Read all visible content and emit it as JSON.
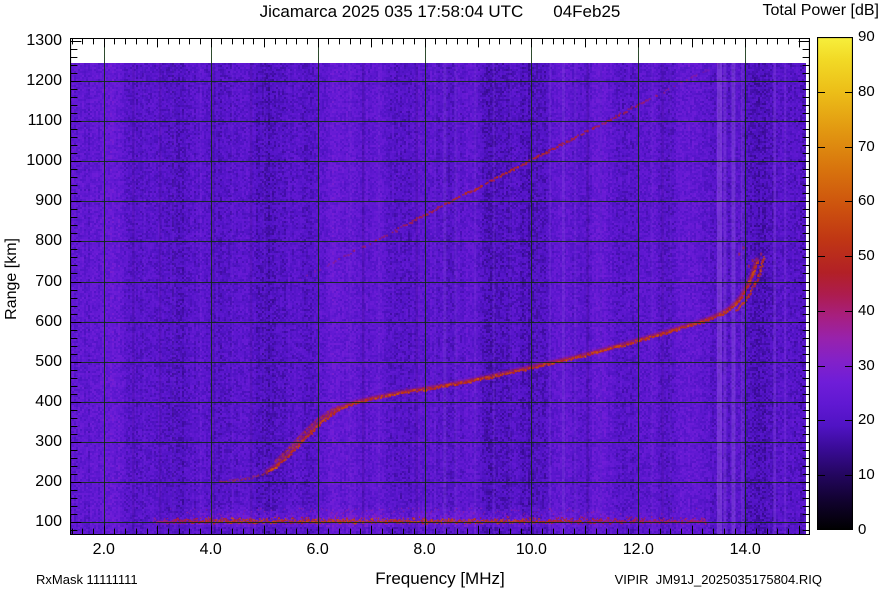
{
  "header": {
    "title_left": "Jicamarca 2025 035 17:58:04 UTC",
    "title_right": "04Feb25",
    "colorbar_title": "Total Power [dB]"
  },
  "axes": {
    "ylabel": "Range [km]",
    "xlabel": "Frequency [MHz]"
  },
  "footer": {
    "rx_mask": "RxMask 11111111",
    "file_label": "VIPIR  JM91J_2025035175804.RIQ"
  },
  "chart_data": {
    "type": "heatmap",
    "title": "Jicamarca 2025 035 17:58:04 UTC 04Feb25",
    "xlabel": "Frequency [MHz]",
    "ylabel": "Range [km]",
    "colorbar_label": "Total Power [dB]",
    "xlim": [
      1.37,
      15.21
    ],
    "ylim": [
      68,
      1307
    ],
    "clim": [
      0,
      90
    ],
    "grid": true,
    "xticks": [
      2,
      4,
      6,
      8,
      10,
      12,
      14
    ],
    "xtick_labels": [
      "2.0",
      "4.0",
      "6.0",
      "8.0",
      "10.0",
      "12.0",
      "14.0"
    ],
    "yticks": [
      100,
      200,
      300,
      400,
      500,
      600,
      700,
      800,
      900,
      1000,
      1100,
      1200,
      1300
    ],
    "ytick_labels": [
      "100",
      "200",
      "300",
      "400",
      "500",
      "600",
      "700",
      "800",
      "900",
      "1000",
      "1100",
      "1200",
      "1300"
    ],
    "cticks": [
      0,
      10,
      20,
      30,
      40,
      50,
      60,
      70,
      80,
      90
    ],
    "ctick_labels": [
      "0",
      "10",
      "20",
      "30",
      "40",
      "50",
      "60",
      "70",
      "80",
      "90"
    ],
    "background_power_db": 21,
    "data_top_km": 1245,
    "grid_color": "#0a2d0a",
    "colormap": [
      [
        0,
        "#000000"
      ],
      [
        5,
        "#10022c"
      ],
      [
        10,
        "#23065e"
      ],
      [
        15,
        "#3a0b98"
      ],
      [
        19,
        "#5013c4"
      ],
      [
        23,
        "#6018d2"
      ],
      [
        27,
        "#6f1dd8"
      ],
      [
        31,
        "#8321c8"
      ],
      [
        35,
        "#9822ac"
      ],
      [
        39,
        "#a71f80"
      ],
      [
        43,
        "#ad1c4e"
      ],
      [
        47,
        "#b22026"
      ],
      [
        53,
        "#c03614"
      ],
      [
        59,
        "#cd520e"
      ],
      [
        66,
        "#d8740d"
      ],
      [
        73,
        "#e29811"
      ],
      [
        80,
        "#ecbe18"
      ],
      [
        86,
        "#f2da26"
      ],
      [
        90,
        "#f7ef3c"
      ]
    ],
    "features": {
      "e_region_band": {
        "freq_range_mhz": [
          2.9,
          13.25
        ],
        "core_range_km": [
          98,
          112
        ],
        "haze_top_km": 138,
        "power_db": [
          38,
          58
        ]
      },
      "f_trace_o_mode": {
        "power_db": [
          47,
          60
        ],
        "points_mhz_km": [
          [
            4.15,
            204
          ],
          [
            4.4,
            206
          ],
          [
            4.65,
            210
          ],
          [
            4.85,
            216
          ],
          [
            5.05,
            226
          ],
          [
            5.25,
            244
          ],
          [
            5.45,
            268
          ],
          [
            5.65,
            296
          ],
          [
            5.85,
            324
          ],
          [
            6.05,
            350
          ],
          [
            6.25,
            371
          ],
          [
            6.45,
            387
          ],
          [
            6.7,
            399
          ],
          [
            7.0,
            409
          ],
          [
            7.3,
            417
          ],
          [
            7.6,
            425
          ],
          [
            8.0,
            433
          ],
          [
            8.4,
            442
          ],
          [
            8.8,
            452
          ],
          [
            9.2,
            463
          ],
          [
            9.6,
            475
          ],
          [
            10.0,
            487
          ],
          [
            10.4,
            499
          ],
          [
            10.8,
            511
          ],
          [
            11.2,
            525
          ],
          [
            11.6,
            539
          ],
          [
            12.0,
            554
          ],
          [
            12.4,
            570
          ],
          [
            12.8,
            586
          ],
          [
            13.1,
            598
          ],
          [
            13.35,
            609
          ],
          [
            13.55,
            621
          ],
          [
            13.7,
            633
          ],
          [
            13.82,
            647
          ],
          [
            13.92,
            663
          ],
          [
            14.0,
            681
          ],
          [
            14.07,
            700
          ],
          [
            14.13,
            720
          ],
          [
            14.18,
            740
          ],
          [
            14.22,
            755
          ]
        ]
      },
      "f_trace_x_split_rise": {
        "points_mhz_km": [
          [
            5.2,
            252
          ],
          [
            5.4,
            278
          ],
          [
            5.6,
            306
          ],
          [
            5.8,
            334
          ],
          [
            6.0,
            358
          ],
          [
            6.2,
            376
          ],
          [
            6.4,
            390
          ]
        ]
      },
      "f_trace_x_split_tail": {
        "points_mhz_km": [
          [
            13.8,
            628
          ],
          [
            13.95,
            650
          ],
          [
            14.07,
            672
          ],
          [
            14.17,
            696
          ],
          [
            14.25,
            722
          ],
          [
            14.31,
            748
          ],
          [
            14.35,
            764
          ]
        ]
      },
      "tail_scatter_dots_mhz_km": [
        [
          13.87,
          772
        ],
        [
          13.95,
          788
        ],
        [
          14.12,
          756
        ],
        [
          14.28,
          772
        ],
        [
          14.05,
          742
        ]
      ],
      "second_hop_trace": {
        "from_mhz_km": [
          5.55,
          700
        ],
        "to_mhz_km": [
          13.55,
          1250
        ]
      },
      "rfi_streaks": [
        [
          8.38,
          3,
          0.22
        ],
        [
          8.58,
          2,
          0.18
        ],
        [
          8.95,
          2,
          0.15
        ],
        [
          9.3,
          2,
          0.15
        ],
        [
          10.35,
          2,
          0.18
        ],
        [
          10.6,
          3,
          0.22
        ],
        [
          10.82,
          2,
          0.15
        ],
        [
          13.52,
          5,
          0.45
        ],
        [
          13.62,
          3,
          0.3
        ],
        [
          13.78,
          4,
          0.4
        ],
        [
          13.95,
          3,
          0.25
        ],
        [
          14.55,
          3,
          0.25
        ],
        [
          14.75,
          2,
          0.2
        ],
        [
          12.25,
          2,
          0.12
        ],
        [
          11.3,
          2,
          0.1
        ],
        [
          6.6,
          2,
          0.1
        ],
        [
          7.15,
          2,
          0.1
        ],
        [
          5.0,
          2,
          0.08
        ],
        [
          3.3,
          2,
          0.1
        ],
        [
          2.75,
          2,
          0.08
        ],
        [
          4.4,
          2,
          0.08
        ],
        [
          3.8,
          2,
          0.08
        ],
        [
          9.6,
          2,
          0.1
        ],
        [
          12.6,
          2,
          0.1
        ],
        [
          8.2,
          2,
          0.12
        ],
        [
          10.1,
          2,
          0.1
        ]
      ],
      "dark_streak_freqs_mhz": [
        2.55,
        3.05,
        4.05,
        4.75,
        6.85,
        7.85,
        11.05,
        12.45
      ]
    }
  }
}
